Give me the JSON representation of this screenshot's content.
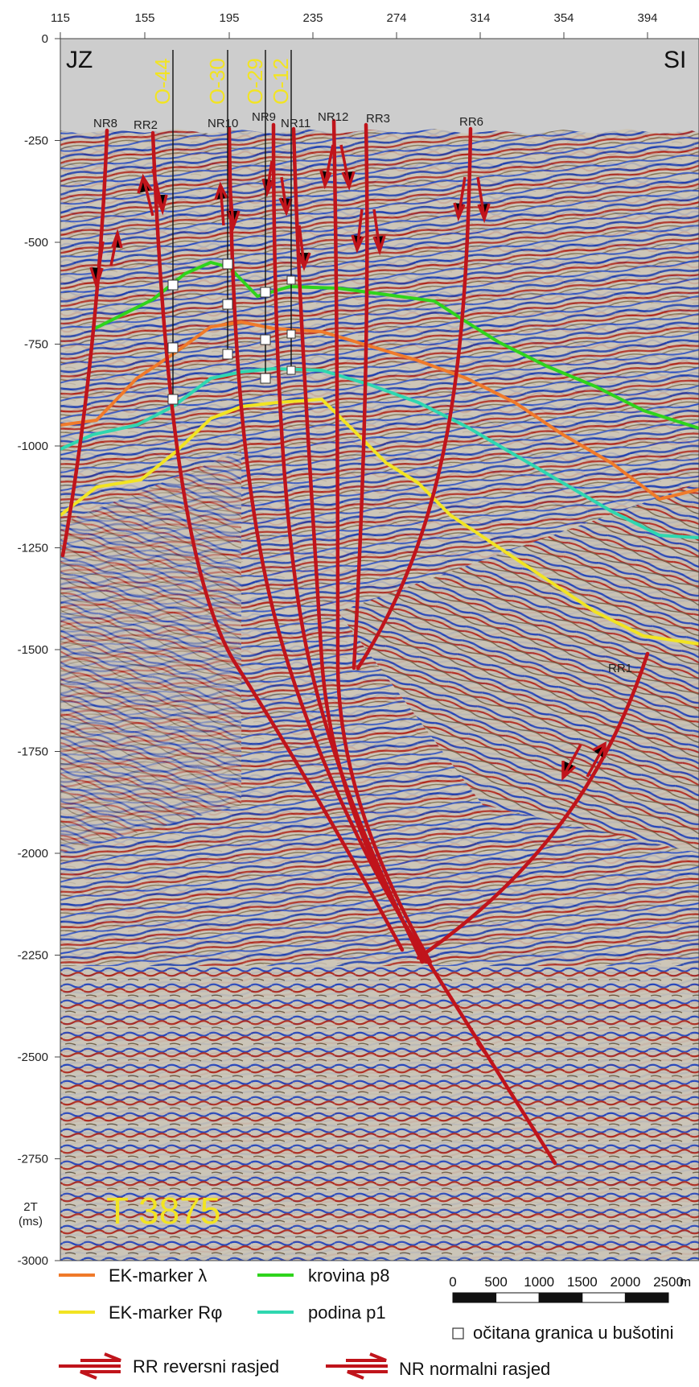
{
  "top_axis": {
    "ticks": [
      "115",
      "155",
      "195",
      "235",
      "274",
      "314",
      "354",
      "394"
    ]
  },
  "left_axis": {
    "ticks": [
      "0",
      "-250",
      "-500",
      "-750",
      "-1000",
      "-1250",
      "-1500",
      "-1750",
      "-2000",
      "-2250",
      "-2500",
      "-2750",
      "-3000"
    ],
    "unit_line1": "2T",
    "unit_line2": "(ms)"
  },
  "corners": {
    "left": "JZ",
    "right": "SI"
  },
  "wells": [
    {
      "label": "O-44"
    },
    {
      "label": "O-30"
    },
    {
      "label": "O-29"
    },
    {
      "label": "O-12"
    }
  ],
  "faults": [
    {
      "label": "NR8"
    },
    {
      "label": "RR2"
    },
    {
      "label": "NR10"
    },
    {
      "label": "NR9"
    },
    {
      "label": "NR11"
    },
    {
      "label": "NR12"
    },
    {
      "label": "RR3"
    },
    {
      "label": "RR6"
    },
    {
      "label": "RR1"
    }
  ],
  "section_name": "T 3875",
  "legend": {
    "ek_lambda": "EK-marker λ",
    "ek_rphi": "EK-marker Rφ",
    "krovina": "krovina p8",
    "podina": "podina p1",
    "well_boundary": "očitana granica u bušotini",
    "reverse_fault": "RR reversni rasjed",
    "normal_fault": "NR normalni rasjed"
  },
  "scale_bar": {
    "labels": [
      "0",
      "500",
      "1000",
      "1500",
      "2000",
      "2500"
    ],
    "unit": "m"
  },
  "colors": {
    "fault": "#c0141b",
    "ek_lambda": "#f07a2a",
    "ek_rphi": "#f2e422",
    "krovina": "#2fd41c",
    "podina": "#2fd7b0",
    "well_label": "#f2e422",
    "blank_top": "#cdcdcd",
    "seismic_bg": "#cfc8bb"
  }
}
